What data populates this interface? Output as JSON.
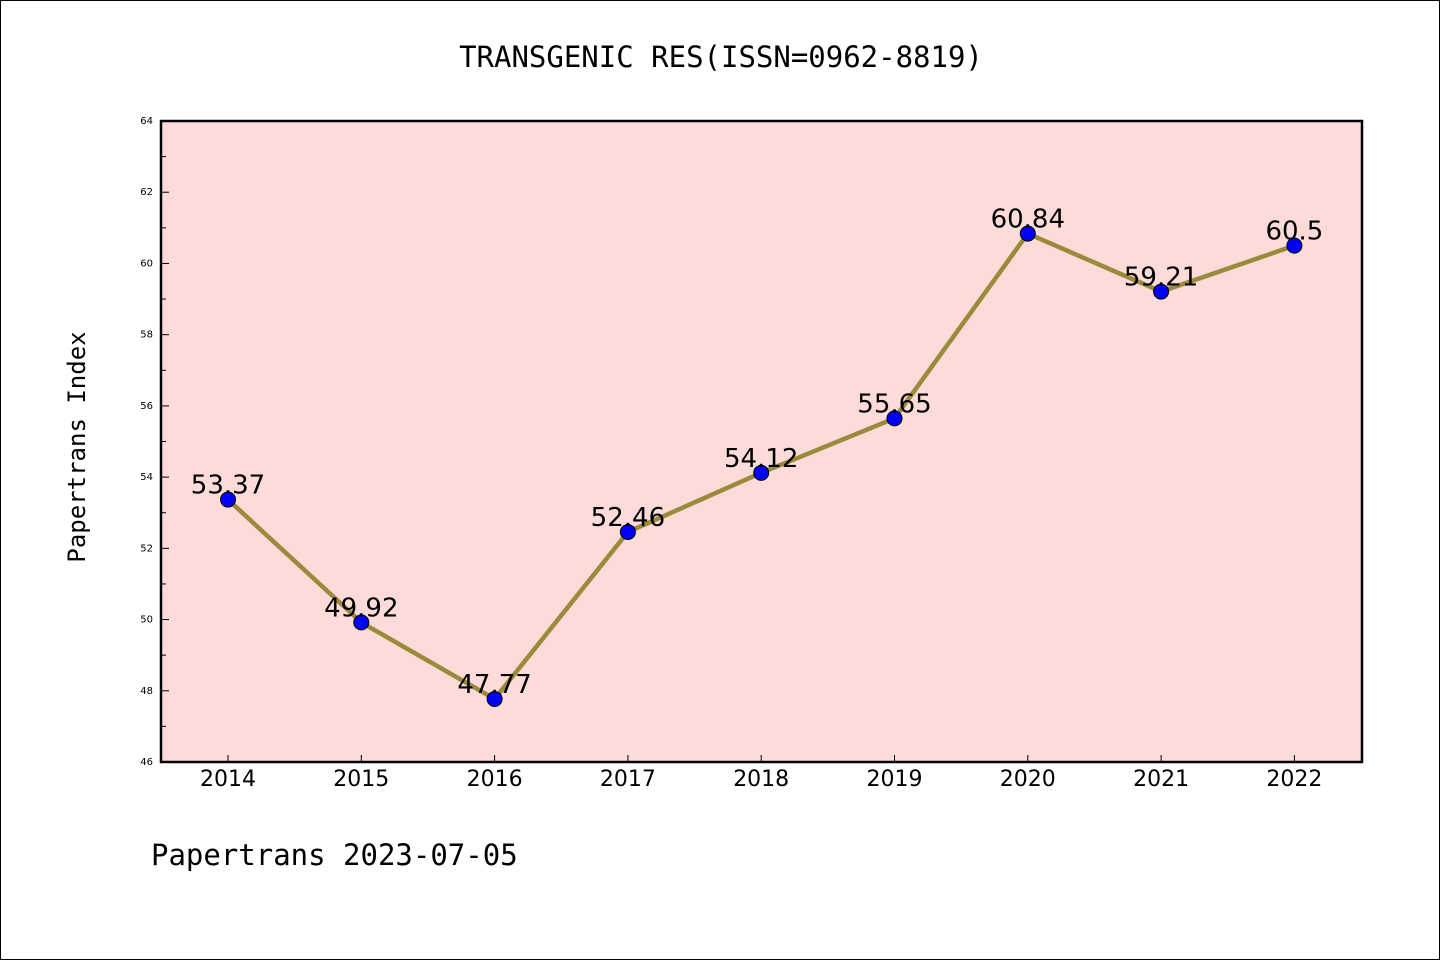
{
  "chart_data": {
    "type": "line",
    "title": "TRANSGENIC RES(ISSN=0962-8819)",
    "ylabel": "Papertrans Index",
    "xlabel": "",
    "footer": "Papertrans 2023-07-05",
    "categories": [
      "2014",
      "2015",
      "2016",
      "2017",
      "2018",
      "2019",
      "2020",
      "2021",
      "2022"
    ],
    "values": [
      53.37,
      49.92,
      47.77,
      52.46,
      54.12,
      55.65,
      60.84,
      59.21,
      60.5
    ],
    "data_labels": [
      "53.37",
      "49.92",
      "47.77",
      "52.46",
      "54.12",
      "55.65",
      "60.84",
      "59.21",
      "60.5"
    ],
    "ylim": [
      46,
      64
    ],
    "yticks": [
      "46",
      "48",
      "50",
      "52",
      "54",
      "56",
      "58",
      "60",
      "62",
      "64"
    ],
    "grid": false,
    "colors": {
      "plot_background": "#fddbd8",
      "line": "#9a8a3c",
      "marker": "#0000ff"
    }
  }
}
